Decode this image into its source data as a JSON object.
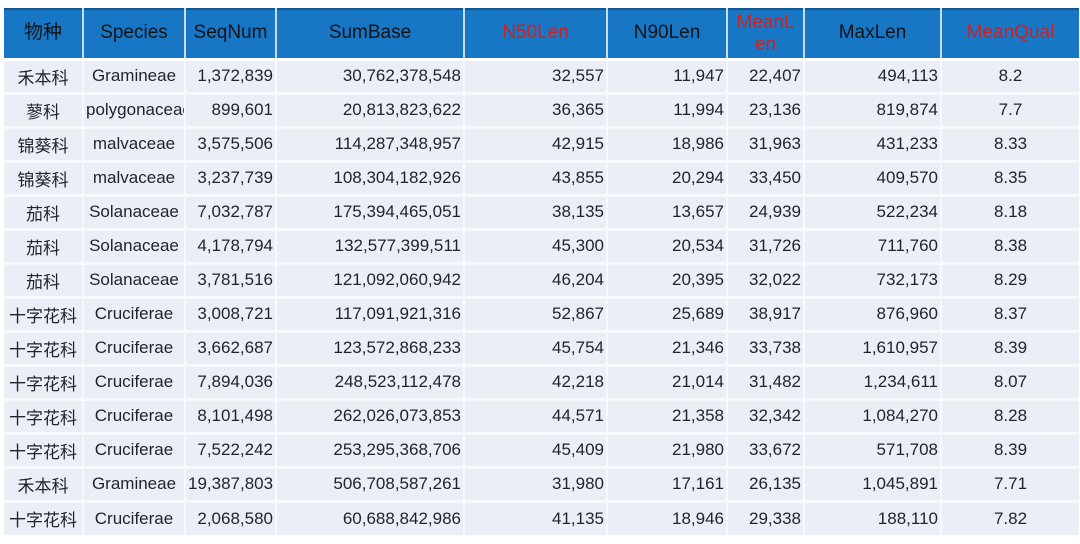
{
  "colors": {
    "header_bg": "#1877c5",
    "header_text": "#101418",
    "header_highlight": "#d02020",
    "row_bg": "#e9eef7",
    "grid_line": "#f7fafc",
    "body_text": "#1f2428"
  },
  "chart_data": {
    "type": "table",
    "columns": [
      {
        "label": "物种",
        "red": false
      },
      {
        "label": "Species",
        "red": false
      },
      {
        "label": "SeqNum",
        "red": false
      },
      {
        "label": "SumBase",
        "red": false
      },
      {
        "label": "N50Len",
        "red": true
      },
      {
        "label": "N90Len",
        "red": false
      },
      {
        "label": "MeanLen",
        "red": true
      },
      {
        "label": "MaxLen",
        "red": false
      },
      {
        "label": "MeanQual",
        "red": true
      }
    ],
    "rows": [
      [
        "禾本科",
        "Gramineae",
        "1,372,839",
        "30,762,378,548",
        "32,557",
        "11,947",
        "22,407",
        "494,113",
        "8.2"
      ],
      [
        "蓼科",
        "polygonaceae",
        "899,601",
        "20,813,823,622",
        "36,365",
        "11,994",
        "23,136",
        "819,874",
        "7.7"
      ],
      [
        "锦葵科",
        "malvaceae",
        "3,575,506",
        "114,287,348,957",
        "42,915",
        "18,986",
        "31,963",
        "431,233",
        "8.33"
      ],
      [
        "锦葵科",
        "malvaceae",
        "3,237,739",
        "108,304,182,926",
        "43,855",
        "20,294",
        "33,450",
        "409,570",
        "8.35"
      ],
      [
        "茄科",
        "Solanaceae",
        "7,032,787",
        "175,394,465,051",
        "38,135",
        "13,657",
        "24,939",
        "522,234",
        "8.18"
      ],
      [
        "茄科",
        "Solanaceae",
        "4,178,794",
        "132,577,399,511",
        "45,300",
        "20,534",
        "31,726",
        "711,760",
        "8.38"
      ],
      [
        "茄科",
        "Solanaceae",
        "3,781,516",
        "121,092,060,942",
        "46,204",
        "20,395",
        "32,022",
        "732,173",
        "8.29"
      ],
      [
        "十字花科",
        "Cruciferae",
        "3,008,721",
        "117,091,921,316",
        "52,867",
        "25,689",
        "38,917",
        "876,960",
        "8.37"
      ],
      [
        "十字花科",
        "Cruciferae",
        "3,662,687",
        "123,572,868,233",
        "45,754",
        "21,346",
        "33,738",
        "1,610,957",
        "8.39"
      ],
      [
        "十字花科",
        "Cruciferae",
        "7,894,036",
        "248,523,112,478",
        "42,218",
        "21,014",
        "31,482",
        "1,234,611",
        "8.07"
      ],
      [
        "十字花科",
        "Cruciferae",
        "8,101,498",
        "262,026,073,853",
        "44,571",
        "21,358",
        "32,342",
        "1,084,270",
        "8.28"
      ],
      [
        "十字花科",
        "Cruciferae",
        "7,522,242",
        "253,295,368,706",
        "45,409",
        "21,980",
        "33,672",
        "571,708",
        "8.39"
      ],
      [
        "禾本科",
        "Gramineae",
        "19,387,803",
        "506,708,587,261",
        "31,980",
        "17,161",
        "26,135",
        "1,045,891",
        "7.71"
      ],
      [
        "十字花科",
        "Cruciferae",
        "2,068,580",
        "60,688,842,986",
        "41,135",
        "18,946",
        "29,338",
        "188,110",
        "7.82"
      ]
    ]
  }
}
